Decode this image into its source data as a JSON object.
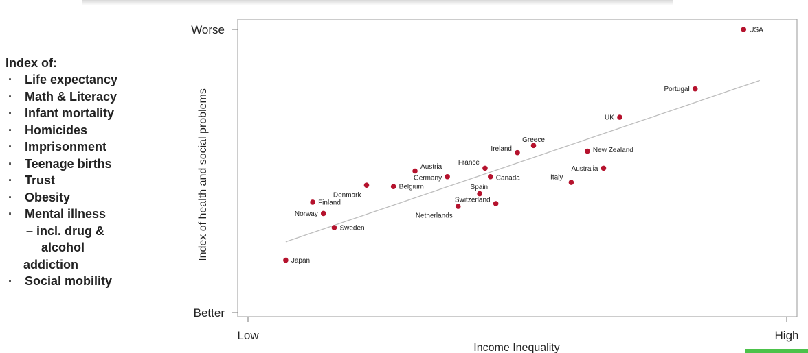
{
  "index_panel": {
    "heading": "Index of:",
    "items": [
      "Life expectancy",
      "Math & Literacy",
      "Infant mortality",
      "Homicides",
      "Imprisonment",
      "Teenage births",
      "Trust",
      "Obesity",
      "Mental illness",
      "– incl. drug &",
      "alcohol",
      "addiction",
      "Social mobility"
    ]
  },
  "chart_data": {
    "type": "scatter",
    "xlabel": "Income Inequality",
    "ylabel": "Index of health and social problems",
    "x_ticks": [
      "Low",
      "High"
    ],
    "y_ticks": [
      "Worse",
      "Better"
    ],
    "xlim": [
      0,
      100
    ],
    "ylim": [
      0,
      100
    ],
    "trendline": {
      "x": [
        7,
        95
      ],
      "y": [
        25,
        82
      ]
    },
    "point_color": "#b5122d",
    "points": [
      {
        "label": "USA",
        "x": 92,
        "y": 100
      },
      {
        "label": "Portugal",
        "x": 83,
        "y": 79
      },
      {
        "label": "UK",
        "x": 69,
        "y": 69
      },
      {
        "label": "Greece",
        "x": 53,
        "y": 59
      },
      {
        "label": "New Zealand",
        "x": 63,
        "y": 57
      },
      {
        "label": "Ireland",
        "x": 50,
        "y": 56.5
      },
      {
        "label": "Australia",
        "x": 66,
        "y": 51
      },
      {
        "label": "France",
        "x": 44,
        "y": 51
      },
      {
        "label": "Austria",
        "x": 31,
        "y": 50
      },
      {
        "label": "Germany",
        "x": 37,
        "y": 48
      },
      {
        "label": "Canada",
        "x": 45,
        "y": 48
      },
      {
        "label": "Italy",
        "x": 60,
        "y": 46
      },
      {
        "label": "Denmark",
        "x": 22,
        "y": 45
      },
      {
        "label": "Belgium",
        "x": 27,
        "y": 44.5
      },
      {
        "label": "Spain",
        "x": 43,
        "y": 42
      },
      {
        "label": "Finland",
        "x": 12,
        "y": 39
      },
      {
        "label": "Switzerland",
        "x": 46,
        "y": 38.5
      },
      {
        "label": "Netherlands",
        "x": 39,
        "y": 37.5
      },
      {
        "label": "Norway",
        "x": 14,
        "y": 35
      },
      {
        "label": "Sweden",
        "x": 16,
        "y": 30
      },
      {
        "label": "Japan",
        "x": 7,
        "y": 18.5
      }
    ]
  }
}
